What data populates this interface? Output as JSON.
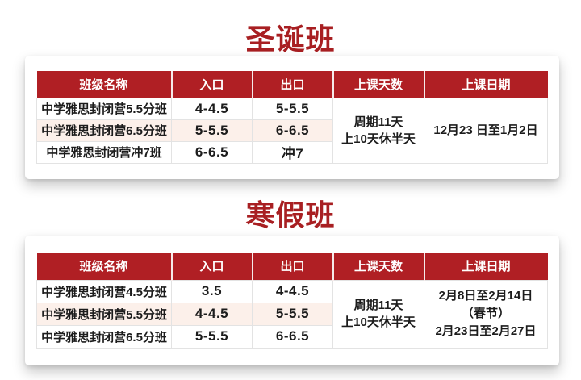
{
  "colors": {
    "title_red": "#a81f22",
    "header_red": "#b01f24",
    "row_pink": "#fcf0ea",
    "border_gray": "#e3e3e3",
    "text_dark": "#1c1c1c"
  },
  "sections": [
    {
      "title": "圣诞班",
      "columns": [
        "班级名称",
        "入口",
        "出口",
        "上课天数",
        "上课日期"
      ],
      "rows": [
        {
          "name": "中学雅思封闭营5.5分班",
          "entry": "4-4.5",
          "exit": "5-5.5"
        },
        {
          "name": "中学雅思封闭营6.5分班",
          "entry": "5-5.5",
          "exit": "6-6.5"
        },
        {
          "name": "中学雅思封闭营冲7班",
          "entry": "6-6.5",
          "exit": "冲7"
        }
      ],
      "days_lines": [
        "周期11天",
        "上10天休半天"
      ],
      "date_lines": [
        "12月23 日至1月2日"
      ]
    },
    {
      "title": "寒假班",
      "columns": [
        "班级名称",
        "入口",
        "出口",
        "上课天数",
        "上课日期"
      ],
      "rows": [
        {
          "name": "中学雅思封闭营4.5分班",
          "entry": "3.5",
          "exit": "4-4.5"
        },
        {
          "name": "中学雅思封闭营5.5分班",
          "entry": "4-4.5",
          "exit": "5-5.5"
        },
        {
          "name": "中学雅思封闭营6.5分班",
          "entry": "5-5.5",
          "exit": "6-6.5"
        }
      ],
      "days_lines": [
        "周期11天",
        "上10天休半天"
      ],
      "date_lines": [
        "2月8日至2月14日",
        "（春节）",
        "2月23日至2月27日"
      ]
    }
  ]
}
